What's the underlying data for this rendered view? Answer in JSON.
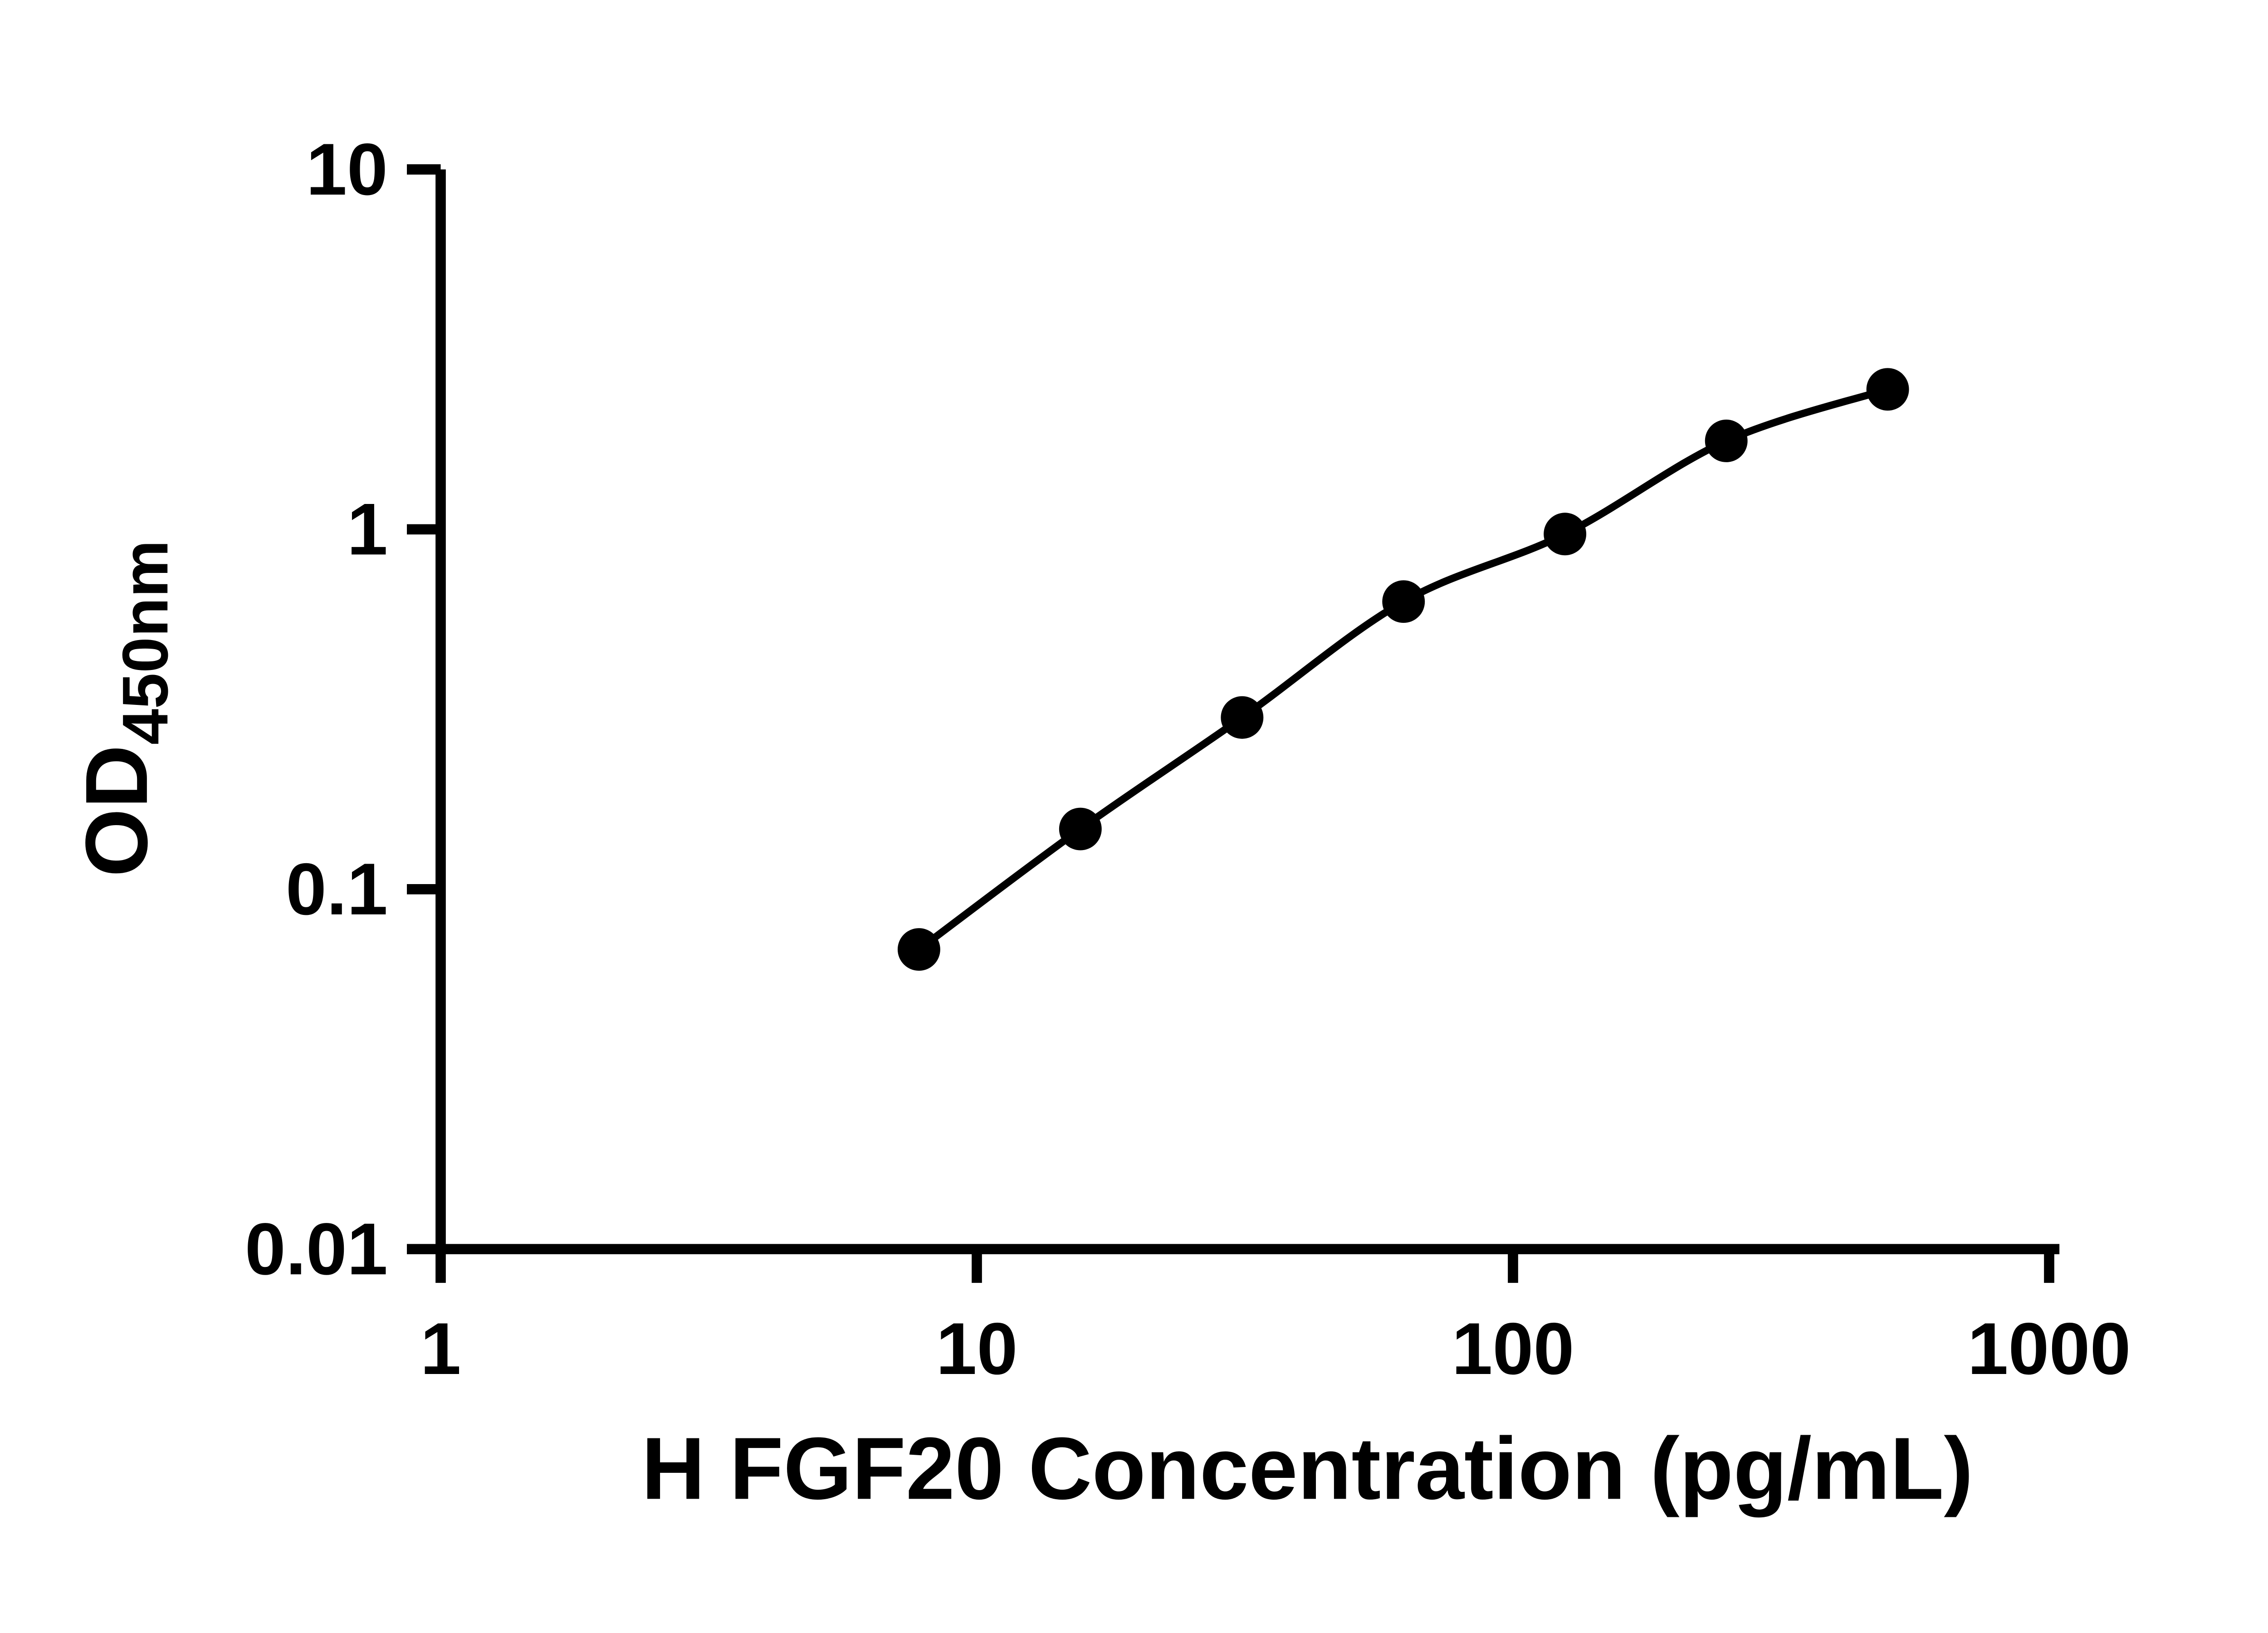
{
  "chart_data": {
    "type": "scatter",
    "connected": true,
    "title": "",
    "xlabel": "H FGF20 Concentration (pg/mL)",
    "ylabel_main": "OD",
    "ylabel_sub": "450nm",
    "x_scale": "log",
    "y_scale": "log",
    "xlim": [
      1,
      1000
    ],
    "ylim": [
      0.01,
      10
    ],
    "x_ticks": [
      1,
      10,
      100,
      1000
    ],
    "x_tick_labels": [
      "1",
      "10",
      "100",
      "1000"
    ],
    "y_ticks": [
      0.01,
      0.1,
      1,
      10
    ],
    "y_tick_labels": [
      "0.01",
      "0.1",
      "1",
      "10"
    ],
    "x": [
      7.8,
      15.6,
      31.25,
      62.5,
      125,
      250,
      500
    ],
    "y": [
      0.068,
      0.147,
      0.3,
      0.63,
      0.97,
      1.76,
      2.45
    ],
    "grid": false,
    "legend": "none",
    "marker_color": "#000000",
    "line_color": "#000000",
    "axis_color": "#000000",
    "background": "#ffffff"
  }
}
